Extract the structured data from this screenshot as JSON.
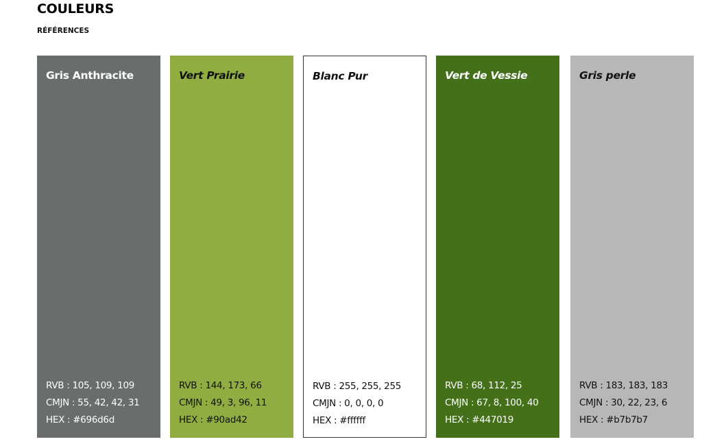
{
  "header": {
    "title": "COULEURS",
    "subtitle": "RÉFÉRENCES"
  },
  "swatches": [
    {
      "name": "Gris Anthracite",
      "color": "#696d6d",
      "rvb": "RVB : 105, 109, 109",
      "cmjn": "CMJN : 55, 42, 42, 31",
      "hex": "HEX : #696d6d"
    },
    {
      "name": "Vert Prairie",
      "color": "#90ad42",
      "rvb": "RVB : 144, 173, 66",
      "cmjn": "CMJN : 49, 3, 96, 11",
      "hex": "HEX : #90ad42"
    },
    {
      "name": "Blanc Pur",
      "color": "#ffffff",
      "rvb": "RVB : 255, 255, 255",
      "cmjn": "CMJN : 0, 0, 0, 0",
      "hex": "HEX : #ffffff"
    },
    {
      "name": "Vert de Vessie",
      "color": "#447019",
      "rvb": "RVB : 68, 112, 25",
      "cmjn": "CMJN : 67, 8, 100, 40",
      "hex": "HEX : #447019"
    },
    {
      "name": "Gris perle",
      "color": "#b7b7b7",
      "rvb": "RVB : 183, 183, 183",
      "cmjn": "CMJN : 30, 22, 23, 6",
      "hex": "HEX : #b7b7b7"
    }
  ]
}
